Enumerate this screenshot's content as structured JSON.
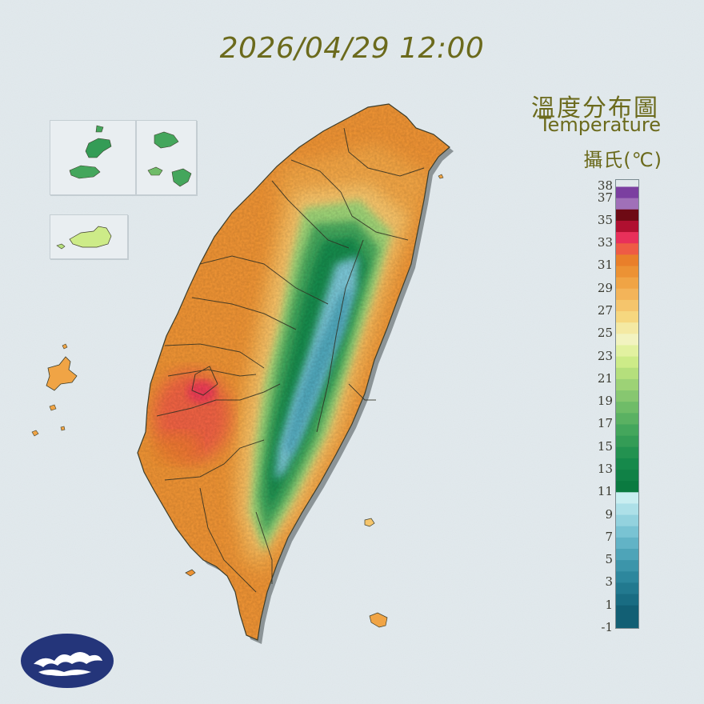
{
  "timestamp": "2026/04/29 12:00",
  "legend": {
    "title_zh": "溫度分布圖",
    "title_en": "Temperature",
    "unit": "攝氏(℃)",
    "labels": [
      "38",
      "37",
      "35",
      "33",
      "31",
      "29",
      "27",
      "25",
      "23",
      "21",
      "19",
      "17",
      "15",
      "13",
      "11",
      "9",
      "7",
      "5",
      "3",
      "1",
      "-1"
    ],
    "colors": [
      {
        "from": 37,
        "to": 38,
        "color": "#7b3fa0"
      },
      {
        "from": 36,
        "to": 37,
        "color": "#a070b8"
      },
      {
        "from": 35,
        "to": 36,
        "color": "#6e0a14"
      },
      {
        "from": 34,
        "to": 35,
        "color": "#b01030"
      },
      {
        "from": 33,
        "to": 34,
        "color": "#e8305a"
      },
      {
        "from": 32,
        "to": 33,
        "color": "#ee5b45"
      },
      {
        "from": 31,
        "to": 32,
        "color": "#e97f2a"
      },
      {
        "from": 30,
        "to": 31,
        "color": "#ec9234"
      },
      {
        "from": 29,
        "to": 30,
        "color": "#f0a445"
      },
      {
        "from": 28,
        "to": 29,
        "color": "#f3b459"
      },
      {
        "from": 27,
        "to": 28,
        "color": "#f5c56c"
      },
      {
        "from": 26,
        "to": 27,
        "color": "#f6d77f"
      },
      {
        "from": 25,
        "to": 26,
        "color": "#f4e9a3"
      },
      {
        "from": 24,
        "to": 25,
        "color": "#f2f3c0"
      },
      {
        "from": 23,
        "to": 24,
        "color": "#e2f1a0"
      },
      {
        "from": 22,
        "to": 23,
        "color": "#cdeb88"
      },
      {
        "from": 21,
        "to": 22,
        "color": "#b5df7c"
      },
      {
        "from": 20,
        "to": 21,
        "color": "#9dd276"
      },
      {
        "from": 19,
        "to": 20,
        "color": "#87c770"
      },
      {
        "from": 18,
        "to": 19,
        "color": "#6fbc68"
      },
      {
        "from": 17,
        "to": 18,
        "color": "#5ab162"
      },
      {
        "from": 16,
        "to": 17,
        "color": "#44a65c"
      },
      {
        "from": 15,
        "to": 16,
        "color": "#349c56"
      },
      {
        "from": 14,
        "to": 15,
        "color": "#239250"
      },
      {
        "from": 13,
        "to": 14,
        "color": "#16894b"
      },
      {
        "from": 12,
        "to": 13,
        "color": "#108146"
      },
      {
        "from": 11,
        "to": 12,
        "color": "#0a7a40"
      },
      {
        "from": 10,
        "to": 11,
        "color": "#c9eef1"
      },
      {
        "from": 9,
        "to": 10,
        "color": "#ade0e8"
      },
      {
        "from": 8,
        "to": 9,
        "color": "#93d2de"
      },
      {
        "from": 7,
        "to": 8,
        "color": "#79c3d3"
      },
      {
        "from": 6,
        "to": 7,
        "color": "#62b3c6"
      },
      {
        "from": 5,
        "to": 6,
        "color": "#4ea4b8"
      },
      {
        "from": 4,
        "to": 5,
        "color": "#3c95aa"
      },
      {
        "from": 3,
        "to": 4,
        "color": "#2d879d"
      },
      {
        "from": 2,
        "to": 3,
        "color": "#22798f"
      },
      {
        "from": 1,
        "to": 2,
        "color": "#196c82"
      },
      {
        "from": -1,
        "to": 1,
        "color": "#125f74"
      }
    ],
    "range": [
      -1,
      38.6
    ]
  },
  "map_colors": {
    "coastal": "#ec9234",
    "plain": "#f0a445",
    "foothill": "#f5c56c",
    "lowland_green": "#9dd276",
    "mid_green": "#44a65c",
    "high_green": "#16894b",
    "alpine": "#79c3d3",
    "hot": "#ee5b45",
    "border": "#3d3d2a",
    "shadow": "#9aa3a6"
  },
  "logo": {
    "color": "#24357a",
    "icon": "cwa-cloud-logo"
  }
}
